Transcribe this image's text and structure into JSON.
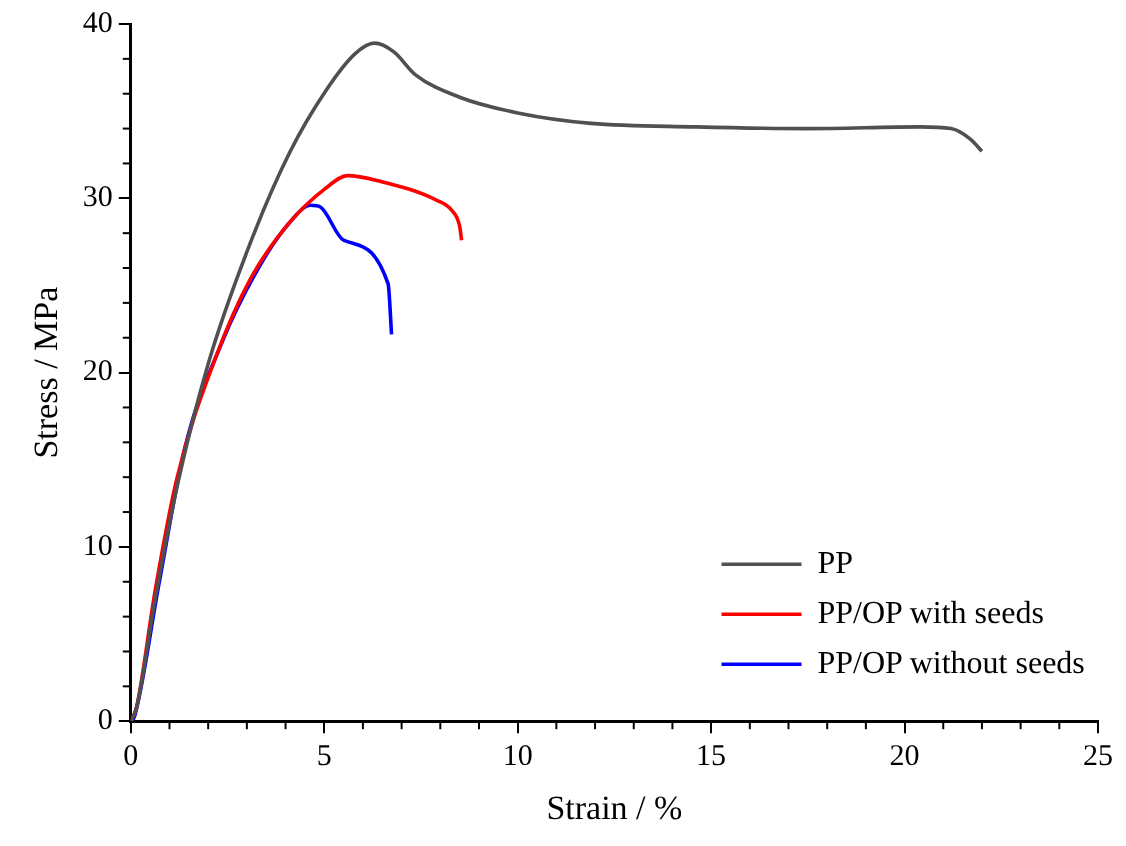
{
  "chart_data": {
    "type": "line",
    "xlabel": "Strain / %",
    "ylabel": "Stress / MPa",
    "xlim": [
      0,
      25
    ],
    "xticks": [
      0,
      5,
      10,
      15,
      20,
      25
    ],
    "ylim": [
      0,
      40
    ],
    "yticks": [
      0,
      10,
      20,
      30,
      40
    ],
    "grid": false,
    "legend": "bottom right",
    "marker": "none",
    "line_style": "solid",
    "series": [
      {
        "name": "PP",
        "color": "#505050",
        "x": [
          0,
          0.15,
          0.63,
          1.2,
          2.0,
          3.1,
          4.1,
          5.05,
          5.8,
          6.3,
          6.8,
          7.35,
          8.5,
          10,
          11.9,
          14.6,
          17.5,
          20.4,
          21.2,
          21.7,
          22.0
        ],
        "values": [
          0,
          0.8,
          7,
          13.5,
          20.5,
          27.5,
          32.6,
          36.2,
          38.3,
          38.9,
          38.4,
          37.1,
          35.8,
          34.9,
          34.3,
          34.1,
          34.0,
          34.1,
          34.0,
          33.4,
          32.7
        ]
      },
      {
        "name": "PP/OP with seeds",
        "color": "#ff0000",
        "x": [
          0,
          0.15,
          0.63,
          1.2,
          2.2,
          3.1,
          4.1,
          5.05,
          5.6,
          6.4,
          7.9,
          8.3,
          8.5,
          8.55
        ],
        "values": [
          0,
          0.8,
          7.5,
          14,
          20.9,
          25.4,
          28.6,
          30.6,
          31.3,
          31.0,
          29.9,
          29.3,
          28.4,
          27.6
        ]
      },
      {
        "name": "PP/OP without seeds",
        "color": "#0000ff",
        "x": [
          0,
          0.1,
          0.73,
          1.4,
          2.35,
          3.3,
          4.1,
          4.65,
          4.9,
          5.5,
          6.65,
          6.74
        ],
        "values": [
          0,
          0.3,
          7.9,
          15.7,
          21.7,
          26.0,
          28.6,
          29.6,
          29.5,
          27.6,
          25.1,
          22.2
        ]
      }
    ]
  }
}
